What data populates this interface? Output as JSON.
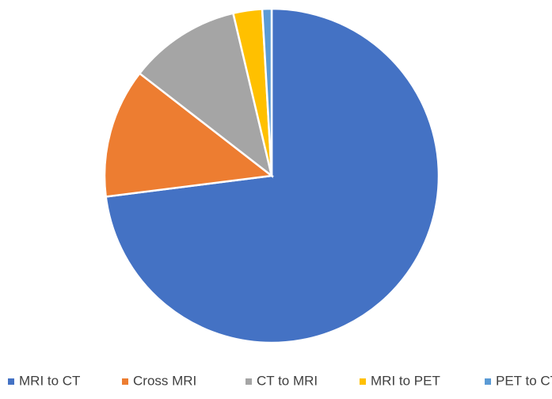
{
  "chart_data": {
    "type": "pie",
    "categories": [
      "MRI to CT",
      "Cross MRI",
      "CT to MRI",
      "MRI to PET",
      "PET to CT"
    ],
    "values": [
      73,
      12.5,
      10.8,
      2.8,
      0.9
    ],
    "colors": [
      "#4472c4",
      "#ed7d31",
      "#a5a5a5",
      "#ffc000",
      "#5b9bd5"
    ],
    "legend": "bottom"
  }
}
